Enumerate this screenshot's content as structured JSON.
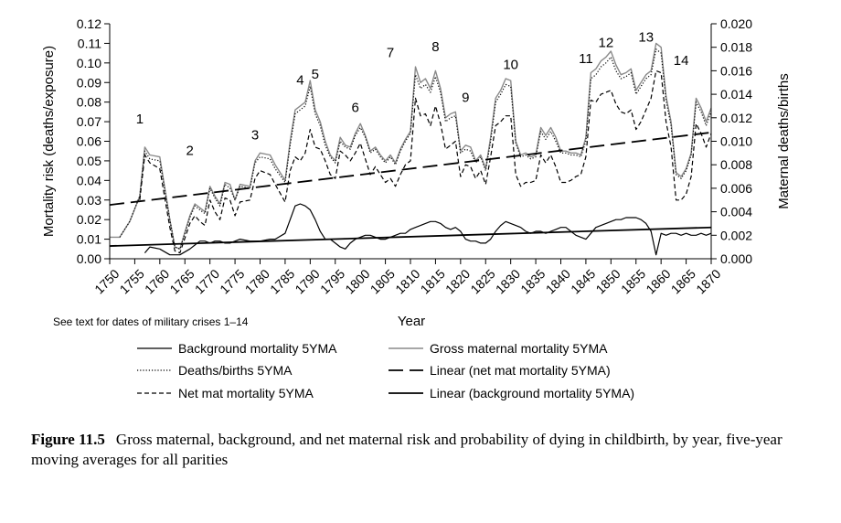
{
  "chart_data": {
    "type": "line",
    "xlabel": "Year",
    "ylabel_left": "Mortality risk (deaths/exposure)",
    "ylabel_right": "Maternal deaths/births",
    "xlim": [
      1750,
      1870
    ],
    "ylim_left": [
      0,
      0.12
    ],
    "ylim_right": [
      0,
      0.02
    ],
    "x_ticks": [
      "1750",
      "1755",
      "1760",
      "1765",
      "1770",
      "1775",
      "1780",
      "1785",
      "1790",
      "1795",
      "1800",
      "1805",
      "1810",
      "1815",
      "1820",
      "1825",
      "1830",
      "1835",
      "1840",
      "1845",
      "1850",
      "1855",
      "1860",
      "1865",
      "1870"
    ],
    "y_ticks_left": [
      "0.00",
      "0.01",
      "0.02",
      "0.03",
      "0.04",
      "0.05",
      "0.06",
      "0.07",
      "0.08",
      "0.09",
      "0.10",
      "0.11",
      "0.12"
    ],
    "y_ticks_right": [
      "0.000",
      "0.002",
      "0.004",
      "0.006",
      "0.008",
      "0.010",
      "0.012",
      "0.014",
      "0.016",
      "0.018",
      "0.020"
    ],
    "note": "See text for dates of  military crises 1–14",
    "crisis_labels": [
      {
        "label": "1",
        "x": 1756,
        "y": 0.069
      },
      {
        "label": "2",
        "x": 1766,
        "y": 0.053
      },
      {
        "label": "3",
        "x": 1779,
        "y": 0.061
      },
      {
        "label": "4",
        "x": 1788,
        "y": 0.089
      },
      {
        "label": "5",
        "x": 1791,
        "y": 0.092
      },
      {
        "label": "6",
        "x": 1799,
        "y": 0.075
      },
      {
        "label": "7",
        "x": 1806,
        "y": 0.103
      },
      {
        "label": "8",
        "x": 1815,
        "y": 0.106
      },
      {
        "label": "9",
        "x": 1821,
        "y": 0.08
      },
      {
        "label": "10",
        "x": 1830,
        "y": 0.097
      },
      {
        "label": "11",
        "x": 1845,
        "y": 0.1
      },
      {
        "label": "12",
        "x": 1849,
        "y": 0.108
      },
      {
        "label": "13",
        "x": 1857,
        "y": 0.111
      },
      {
        "label": "14",
        "x": 1864,
        "y": 0.099
      }
    ],
    "x": [
      1750,
      1752,
      1754,
      1756,
      1757,
      1758,
      1760,
      1762,
      1763,
      1764,
      1766,
      1767,
      1768,
      1769,
      1770,
      1771,
      1772,
      1773,
      1774,
      1775,
      1776,
      1778,
      1779,
      1780,
      1782,
      1783,
      1785,
      1786,
      1787,
      1788,
      1789,
      1790,
      1791,
      1792,
      1793,
      1794,
      1795,
      1796,
      1797,
      1798,
      1799,
      1800,
      1801,
      1802,
      1803,
      1804,
      1805,
      1806,
      1807,
      1808,
      1809,
      1810,
      1811,
      1812,
      1813,
      1814,
      1815,
      1816,
      1817,
      1818,
      1819,
      1820,
      1821,
      1822,
      1823,
      1824,
      1825,
      1826,
      1827,
      1828,
      1829,
      1830,
      1831,
      1832,
      1833,
      1834,
      1835,
      1836,
      1837,
      1838,
      1839,
      1840,
      1841,
      1842,
      1843,
      1844,
      1845,
      1846,
      1847,
      1848,
      1849,
      1850,
      1851,
      1852,
      1853,
      1854,
      1855,
      1856,
      1857,
      1858,
      1859,
      1860,
      1861,
      1862,
      1863,
      1864,
      1865,
      1866,
      1867,
      1868,
      1869,
      1870
    ],
    "series": [
      {
        "name": "Background mortality 5YMA",
        "style": "solid-thin",
        "values": [
          null,
          null,
          null,
          null,
          0.003,
          0.006,
          0.005,
          0.002,
          0.002,
          0.002,
          0.005,
          0.007,
          0.009,
          0.009,
          0.008,
          0.009,
          0.009,
          0.008,
          0.008,
          0.009,
          0.01,
          0.009,
          0.009,
          0.009,
          0.01,
          0.01,
          0.013,
          0.02,
          0.027,
          0.028,
          0.027,
          0.025,
          0.02,
          0.014,
          0.01,
          0.01,
          0.008,
          0.006,
          0.005,
          0.008,
          0.01,
          0.011,
          0.012,
          0.012,
          0.011,
          0.01,
          0.01,
          0.011,
          0.012,
          0.013,
          0.013,
          0.015,
          0.016,
          0.017,
          0.018,
          0.019,
          0.019,
          0.018,
          0.016,
          0.015,
          0.016,
          0.014,
          0.01,
          0.009,
          0.009,
          0.008,
          0.008,
          0.01,
          0.014,
          0.017,
          0.019,
          0.018,
          0.017,
          0.016,
          0.014,
          0.013,
          0.014,
          0.014,
          0.013,
          0.014,
          0.015,
          0.016,
          0.016,
          0.014,
          0.012,
          0.011,
          0.01,
          0.013,
          0.016,
          0.017,
          0.018,
          0.019,
          0.02,
          0.02,
          0.021,
          0.021,
          0.021,
          0.02,
          0.018,
          0.014,
          0.002,
          0.013,
          0.012,
          0.013,
          0.013,
          0.012,
          0.013,
          0.012,
          0.012,
          0.013,
          0.012,
          0.013
        ]
      },
      {
        "name": "Gross maternal mortality 5YMA",
        "style": "solid-gray",
        "values": [
          0.011,
          0.011,
          0.019,
          0.032,
          0.057,
          0.053,
          0.052,
          0.02,
          0.006,
          0.005,
          0.022,
          0.028,
          0.026,
          0.024,
          0.037,
          0.032,
          0.028,
          0.039,
          0.038,
          0.03,
          0.038,
          0.037,
          0.05,
          0.054,
          0.053,
          0.048,
          0.04,
          0.06,
          0.076,
          0.078,
          0.08,
          0.091,
          0.076,
          0.07,
          0.06,
          0.053,
          0.05,
          0.062,
          0.058,
          0.057,
          0.064,
          0.069,
          0.063,
          0.055,
          0.057,
          0.053,
          0.05,
          0.053,
          0.049,
          0.056,
          0.061,
          0.065,
          0.098,
          0.09,
          0.092,
          0.087,
          0.096,
          0.087,
          0.072,
          0.074,
          0.075,
          0.055,
          0.058,
          0.057,
          0.05,
          0.053,
          0.046,
          0.062,
          0.082,
          0.086,
          0.092,
          0.091,
          0.06,
          0.053,
          0.054,
          0.052,
          0.053,
          0.067,
          0.063,
          0.067,
          0.062,
          0.055,
          0.055,
          0.054,
          0.054,
          0.053,
          0.062,
          0.095,
          0.097,
          0.101,
          0.103,
          0.106,
          0.099,
          0.094,
          0.095,
          0.097,
          0.086,
          0.09,
          0.094,
          0.096,
          0.11,
          0.108,
          0.083,
          0.07,
          0.044,
          0.042,
          0.046,
          0.054,
          0.082,
          0.077,
          0.07,
          0.077
        ]
      },
      {
        "name": "Deaths/births 5YMA",
        "style": "dotted",
        "values": [
          null,
          0.011,
          0.019,
          0.032,
          0.055,
          0.051,
          0.05,
          0.02,
          0.006,
          0.005,
          0.021,
          0.027,
          0.025,
          0.023,
          0.036,
          0.031,
          0.027,
          0.038,
          0.036,
          0.03,
          0.037,
          0.036,
          0.049,
          0.052,
          0.051,
          0.046,
          0.039,
          0.058,
          0.074,
          0.076,
          0.078,
          0.088,
          0.074,
          0.068,
          0.058,
          0.052,
          0.049,
          0.06,
          0.057,
          0.056,
          0.063,
          0.067,
          0.062,
          0.054,
          0.056,
          0.052,
          0.049,
          0.052,
          0.048,
          0.055,
          0.06,
          0.064,
          0.094,
          0.087,
          0.089,
          0.085,
          0.093,
          0.085,
          0.07,
          0.072,
          0.073,
          0.054,
          0.056,
          0.055,
          0.049,
          0.052,
          0.045,
          0.06,
          0.08,
          0.084,
          0.089,
          0.088,
          0.059,
          0.052,
          0.053,
          0.051,
          0.052,
          0.065,
          0.061,
          0.065,
          0.06,
          0.054,
          0.054,
          0.053,
          0.053,
          0.052,
          0.06,
          0.092,
          0.094,
          0.098,
          0.1,
          0.103,
          0.096,
          0.092,
          0.093,
          0.095,
          0.084,
          0.088,
          0.092,
          0.094,
          0.107,
          0.105,
          0.081,
          0.068,
          0.043,
          0.041,
          0.045,
          0.053,
          0.08,
          0.075,
          0.068,
          0.075
        ]
      },
      {
        "name": "Net mat mortality 5YMA",
        "style": "dashed",
        "values": [
          null,
          null,
          null,
          0.03,
          0.053,
          0.049,
          0.046,
          0.016,
          0.004,
          0.003,
          0.018,
          0.022,
          0.019,
          0.017,
          0.03,
          0.024,
          0.02,
          0.031,
          0.03,
          0.022,
          0.029,
          0.03,
          0.041,
          0.045,
          0.043,
          0.038,
          0.029,
          0.045,
          0.052,
          0.05,
          0.054,
          0.066,
          0.057,
          0.056,
          0.05,
          0.043,
          0.041,
          0.055,
          0.053,
          0.05,
          0.054,
          0.059,
          0.051,
          0.043,
          0.047,
          0.043,
          0.039,
          0.041,
          0.037,
          0.043,
          0.048,
          0.05,
          0.082,
          0.073,
          0.074,
          0.068,
          0.078,
          0.069,
          0.056,
          0.058,
          0.06,
          0.042,
          0.048,
          0.047,
          0.041,
          0.045,
          0.038,
          0.052,
          0.068,
          0.07,
          0.073,
          0.073,
          0.043,
          0.037,
          0.039,
          0.039,
          0.04,
          0.053,
          0.049,
          0.053,
          0.047,
          0.039,
          0.039,
          0.04,
          0.042,
          0.043,
          0.052,
          0.081,
          0.08,
          0.084,
          0.085,
          0.086,
          0.079,
          0.075,
          0.074,
          0.076,
          0.066,
          0.07,
          0.076,
          0.082,
          0.096,
          0.095,
          0.07,
          0.057,
          0.03,
          0.03,
          0.033,
          0.042,
          0.069,
          0.064,
          0.057,
          0.064
        ]
      }
    ],
    "trend_lines": [
      {
        "name": "Linear (net mat mortality 5YMA)",
        "style": "long-dash",
        "x": [
          1750,
          1870
        ],
        "y": [
          0.0275,
          0.0645
        ]
      },
      {
        "name": "Linear (background mortality 5YMA)",
        "style": "solid-thick",
        "x": [
          1750,
          1870
        ],
        "y": [
          0.0065,
          0.016
        ]
      }
    ],
    "legend": [
      {
        "label": "Background mortality 5YMA",
        "style": "solid-thin"
      },
      {
        "label": "Gross maternal mortality 5YMA",
        "style": "solid-gray"
      },
      {
        "label": "Deaths/births 5YMA",
        "style": "dotted"
      },
      {
        "label": "Linear (net mat mortality 5YMA)",
        "style": "long-dash"
      },
      {
        "label": "Net mat mortality 5YMA",
        "style": "dashed"
      },
      {
        "label": "Linear (background mortality 5YMA)",
        "style": "solid-thick"
      }
    ],
    "legend_placement": "bottom",
    "grid": false
  },
  "caption": {
    "label": "Figure 11.5",
    "text": "Gross maternal, background, and net maternal risk and probability of dying in childbirth, by year, five-year moving averages for all parities"
  },
  "colors": {
    "axis": "#000000",
    "gross_line": "#8a8a8a",
    "series_dark": "#000000"
  }
}
